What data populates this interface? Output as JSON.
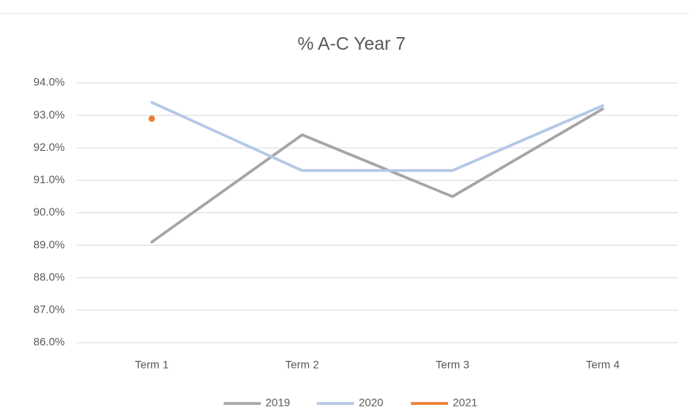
{
  "chart_data": {
    "type": "line",
    "title": "% A-C Year 7",
    "categories": [
      "Term 1",
      "Term 2",
      "Term 3",
      "Term 4"
    ],
    "series": [
      {
        "name": "2019",
        "color": "#a5a5a5",
        "values": [
          89.1,
          92.4,
          90.5,
          93.2
        ]
      },
      {
        "name": "2020",
        "color": "#b4c7e7",
        "values": [
          93.4,
          91.3,
          91.3,
          93.3
        ]
      },
      {
        "name": "2021",
        "color": "#ed7d31",
        "values": [
          92.9,
          null,
          null,
          null
        ]
      }
    ],
    "ylim": [
      86,
      94
    ],
    "yticks": [
      {
        "value": 86,
        "label": "86.0%"
      },
      {
        "value": 87,
        "label": "87.0%"
      },
      {
        "value": 88,
        "label": "88.0%"
      },
      {
        "value": 89,
        "label": "89.0%"
      },
      {
        "value": 90,
        "label": "90.0%"
      },
      {
        "value": 91,
        "label": "91.0%"
      },
      {
        "value": 92,
        "label": "92.0%"
      },
      {
        "value": 93,
        "label": "93.0%"
      },
      {
        "value": 94,
        "label": "94.0%"
      }
    ],
    "grid": true,
    "legend": "bottom"
  }
}
